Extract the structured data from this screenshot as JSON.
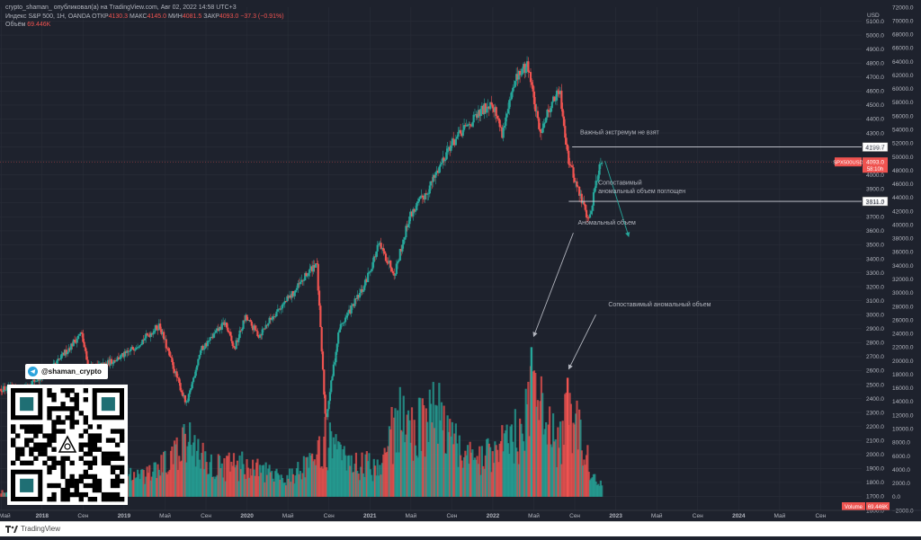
{
  "header": {
    "published": "crypto_shaman_ опубликовал(а) на TradingView.com, Авг 02, 2022 14:58 UTC+3",
    "symbol": "Индекс S&P 500, 1Н, OANDA",
    "ohlc": [
      {
        "label": "ОТКР",
        "value": "4130.3"
      },
      {
        "label": "МАКС",
        "value": "4145.0"
      },
      {
        "label": "МИН",
        "value": "4081.5"
      },
      {
        "label": "ЗАКР",
        "value": "4093.0"
      }
    ],
    "change": "−37.3 (−0.91%)",
    "volume_label": "Объём",
    "volume_value": "69.446K"
  },
  "promo": {
    "telegram_handle": "@shaman_crypto"
  },
  "footer": {
    "brand": "TradingView"
  },
  "chart_data": {
    "type": "candlestick",
    "currency_label": "USD",
    "price_axis": {
      "range": [
        1600,
        5200
      ],
      "ticks": [
        1600,
        1700,
        1800,
        1900,
        2000,
        2100,
        2200,
        2300,
        2400,
        2500,
        2600,
        2700,
        2800,
        2900,
        3000,
        3100,
        3200,
        3300,
        3400,
        3500,
        3600,
        3700,
        3800,
        3900,
        4000,
        4100,
        4200,
        4300,
        4400,
        4500,
        4600,
        4700,
        4800,
        4900,
        5000,
        5100
      ]
    },
    "volume_axis": {
      "range": [
        -2000,
        72000
      ],
      "ticks": [
        -2000,
        0,
        2000,
        4000,
        6000,
        8000,
        10000,
        12000,
        14000,
        16000,
        18000,
        20000,
        22000,
        24000,
        26000,
        28000,
        30000,
        32000,
        34000,
        36000,
        38000,
        40000,
        42000,
        44000,
        46000,
        48000,
        50000,
        52000,
        54000,
        56000,
        58000,
        60000,
        62000,
        64000,
        66000,
        68000,
        70000,
        72000
      ]
    },
    "time_axis": {
      "labels": [
        "Май",
        "2018",
        "Сен",
        "2019",
        "Май",
        "Сен",
        "2020",
        "Май",
        "Сен",
        "2021",
        "Май",
        "Сен",
        "2022",
        "Май",
        "Сен",
        "2023",
        "Май",
        "Сен",
        "2024",
        "Май",
        "Сен"
      ],
      "range": [
        2017.33,
        2024.95
      ]
    },
    "price_series": [
      {
        "t": 2017.5,
        "close": 2470
      },
      {
        "t": 2017.75,
        "close": 2575
      },
      {
        "t": 2018.05,
        "close": 2870
      },
      {
        "t": 2018.11,
        "close": 2620
      },
      {
        "t": 2018.25,
        "close": 2640
      },
      {
        "t": 2018.45,
        "close": 2720
      },
      {
        "t": 2018.74,
        "close": 2925
      },
      {
        "t": 2018.83,
        "close": 2700
      },
      {
        "t": 2018.98,
        "close": 2350
      },
      {
        "t": 2019.1,
        "close": 2740
      },
      {
        "t": 2019.32,
        "close": 2945
      },
      {
        "t": 2019.4,
        "close": 2750
      },
      {
        "t": 2019.5,
        "close": 2980
      },
      {
        "t": 2019.62,
        "close": 2850
      },
      {
        "t": 2019.75,
        "close": 3000
      },
      {
        "t": 2019.92,
        "close": 3150
      },
      {
        "t": 2020.13,
        "close": 3380
      },
      {
        "t": 2020.21,
        "close": 2240
      },
      {
        "t": 2020.33,
        "close": 2900
      },
      {
        "t": 2020.55,
        "close": 3200
      },
      {
        "t": 2020.68,
        "close": 3500
      },
      {
        "t": 2020.82,
        "close": 3300
      },
      {
        "t": 2020.95,
        "close": 3700
      },
      {
        "t": 2021.12,
        "close": 3900
      },
      {
        "t": 2021.3,
        "close": 4200
      },
      {
        "t": 2021.5,
        "close": 4380
      },
      {
        "t": 2021.68,
        "close": 4530
      },
      {
        "t": 2021.77,
        "close": 4300
      },
      {
        "t": 2021.9,
        "close": 4700
      },
      {
        "t": 2022.0,
        "close": 4790
      },
      {
        "t": 2022.1,
        "close": 4300
      },
      {
        "t": 2022.2,
        "close": 4500
      },
      {
        "t": 2022.28,
        "close": 4600
      },
      {
        "t": 2022.36,
        "close": 4100
      },
      {
        "t": 2022.46,
        "close": 3850
      },
      {
        "t": 2022.54,
        "close": 3670
      },
      {
        "t": 2022.6,
        "close": 3950
      },
      {
        "t": 2022.65,
        "close": 4130
      },
      {
        "t": 2022.66,
        "close": 4093
      }
    ],
    "volume_series": [
      {
        "t": 2017.4,
        "v": 1000
      },
      {
        "t": 2017.6,
        "v": 2000
      },
      {
        "t": 2017.8,
        "v": 2000
      },
      {
        "t": 2018.05,
        "v": 6000
      },
      {
        "t": 2018.15,
        "v": 9000
      },
      {
        "t": 2018.3,
        "v": 5000
      },
      {
        "t": 2018.6,
        "v": 3000
      },
      {
        "t": 2018.85,
        "v": 6000
      },
      {
        "t": 2019.0,
        "v": 9000
      },
      {
        "t": 2019.2,
        "v": 5000
      },
      {
        "t": 2019.5,
        "v": 5000
      },
      {
        "t": 2019.8,
        "v": 3000
      },
      {
        "t": 2020.1,
        "v": 5000
      },
      {
        "t": 2020.21,
        "v": 9000
      },
      {
        "t": 2020.4,
        "v": 5000
      },
      {
        "t": 2020.7,
        "v": 5000
      },
      {
        "t": 2020.85,
        "v": 13000
      },
      {
        "t": 2021.0,
        "v": 10000
      },
      {
        "t": 2021.1,
        "v": 13000
      },
      {
        "t": 2021.2,
        "v": 13000
      },
      {
        "t": 2021.4,
        "v": 7000
      },
      {
        "t": 2021.6,
        "v": 6000
      },
      {
        "t": 2021.8,
        "v": 9000
      },
      {
        "t": 2021.95,
        "v": 10000
      },
      {
        "t": 2022.05,
        "v": 16000
      },
      {
        "t": 2022.1,
        "v": 15000
      },
      {
        "t": 2022.2,
        "v": 10000
      },
      {
        "t": 2022.26,
        "v": 8000
      },
      {
        "t": 2022.34,
        "v": 12000
      },
      {
        "t": 2022.4,
        "v": 14000
      },
      {
        "t": 2022.46,
        "v": 10000
      },
      {
        "t": 2022.52,
        "v": 6000
      },
      {
        "t": 2022.6,
        "v": 2000
      }
    ],
    "spike_volumes": [
      {
        "t": 2022.03,
        "v": 22000,
        "color": "#26a69a"
      },
      {
        "t": 2022.35,
        "v": 17500,
        "color": "#ef5350"
      }
    ],
    "horizontal_levels": [
      {
        "price": 4199.7,
        "label": "4199.7",
        "start_t": 2022.39
      },
      {
        "price": 3811.0,
        "label": "3811.0",
        "start_t": 2022.36
      }
    ],
    "annotations": [
      {
        "text": "Важный экстремум не взят",
        "t": 2022.46,
        "price": 4290
      },
      {
        "text": "Сопоставимый",
        "t": 2022.62,
        "price": 3930
      },
      {
        "text": "аномальный объем поглощен",
        "t": 2022.62,
        "price": 3870
      },
      {
        "text": "Аномальный объем",
        "t": 2022.44,
        "volume": 40000
      },
      {
        "text": "Сопоставимый аномальный объем",
        "t": 2022.71,
        "volume": 28000
      }
    ],
    "arrows": [
      {
        "from_t": 2022.4,
        "from_volume": 38800,
        "to_t": 2022.05,
        "to_volume": 23600,
        "color": "#b2b5be"
      },
      {
        "from_t": 2022.6,
        "from_volume": 26800,
        "to_t": 2022.36,
        "to_volume": 18800,
        "color": "#b2b5be"
      },
      {
        "from_t": 2022.68,
        "from_price": 4100,
        "to_t": 2022.89,
        "to_price": 3560,
        "color": "#26a69a"
      }
    ],
    "last_price": {
      "symbol_label": "SPX500USD",
      "price": 4093.0,
      "value_label": "4093.0",
      "countdown": "58:10h",
      "color": "#ef5350"
    },
    "volume_badge": {
      "label": "Volume",
      "value": "69.446K"
    },
    "colors": {
      "up": "#26a69a",
      "down": "#ef5350",
      "background": "#1e222d",
      "grid": "#2a2e39",
      "text": "#b2b5be"
    }
  }
}
